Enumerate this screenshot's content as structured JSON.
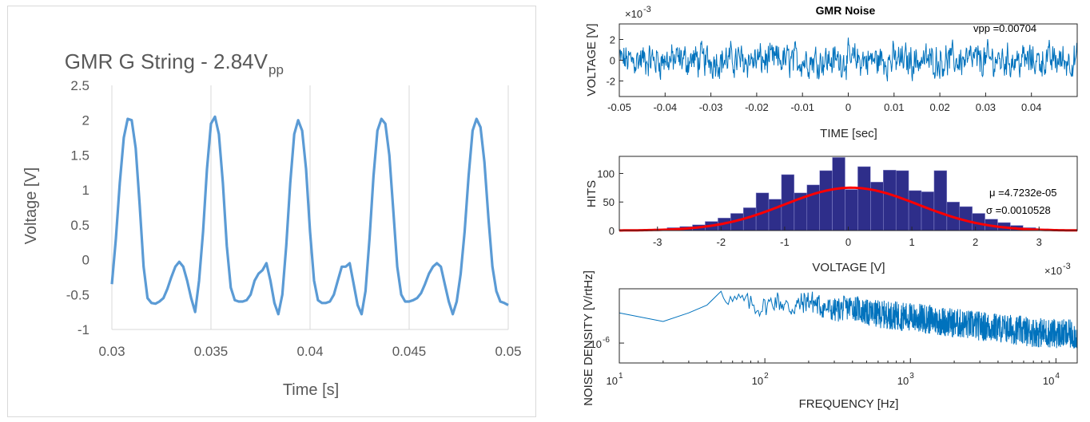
{
  "chart_data": [
    {
      "type": "line",
      "title": "GMR G String - 2.84V",
      "title_subscript": "pp",
      "xlabel": "Time [s]",
      "ylabel": "Voltage [V]",
      "xlim": [
        0.03,
        0.05
      ],
      "ylim": [
        -1,
        2.5
      ],
      "x_ticks": [
        "0.03",
        "0.035",
        "0.04",
        "0.045",
        "0.05"
      ],
      "y_ticks": [
        "2.5",
        "2",
        "1.5",
        "1",
        "0.5",
        "0",
        "-0.5",
        "-1"
      ],
      "grid": "vertical",
      "series_color": "#5b9bd5",
      "series": [
        {
          "x": [
            0.03,
            0.0302,
            0.0304,
            0.0306,
            0.0308,
            0.031,
            0.0312,
            0.0314,
            0.0316,
            0.0318,
            0.032,
            0.0322,
            0.0324,
            0.0326,
            0.0328,
            0.033,
            0.0332,
            0.0334,
            0.0336,
            0.0338,
            0.034,
            0.0342,
            0.0344,
            0.0346,
            0.0348,
            0.035,
            0.0352,
            0.0354,
            0.0356,
            0.0358,
            0.036,
            0.0362,
            0.0364,
            0.0366,
            0.0368,
            0.037,
            0.0372,
            0.0374,
            0.0376,
            0.0378,
            0.038,
            0.0382,
            0.0384,
            0.0386,
            0.0388,
            0.039,
            0.0392,
            0.0394,
            0.0396,
            0.0398,
            0.04,
            0.0402,
            0.0404,
            0.0406,
            0.0408,
            0.041,
            0.0412,
            0.0414,
            0.0416,
            0.0418,
            0.042,
            0.0422,
            0.0424,
            0.0426,
            0.0428,
            0.043,
            0.0432,
            0.0434,
            0.0436,
            0.0438,
            0.044,
            0.0442,
            0.0444,
            0.0446,
            0.0448,
            0.045,
            0.0452,
            0.0454,
            0.0456,
            0.0458,
            0.046,
            0.0462,
            0.0464,
            0.0466,
            0.0468,
            0.047,
            0.0472,
            0.0474,
            0.0476,
            0.0478,
            0.048,
            0.0482,
            0.0484,
            0.0486,
            0.0488,
            0.049,
            0.0492,
            0.0494,
            0.0496,
            0.0498,
            0.05
          ],
          "y": [
            -0.35,
            0.3,
            1.1,
            1.75,
            2.02,
            2.0,
            1.6,
            0.8,
            -0.1,
            -0.55,
            -0.62,
            -0.63,
            -0.6,
            -0.55,
            -0.42,
            -0.25,
            -0.1,
            -0.03,
            -0.1,
            -0.3,
            -0.55,
            -0.75,
            -0.3,
            0.4,
            1.3,
            1.95,
            2.05,
            1.8,
            1.1,
            0.2,
            -0.4,
            -0.58,
            -0.6,
            -0.6,
            -0.58,
            -0.5,
            -0.3,
            -0.2,
            -0.15,
            -0.05,
            -0.3,
            -0.62,
            -0.78,
            -0.5,
            0.2,
            1.1,
            1.8,
            2.0,
            1.85,
            1.3,
            0.4,
            -0.3,
            -0.58,
            -0.62,
            -0.62,
            -0.6,
            -0.5,
            -0.3,
            -0.1,
            -0.1,
            -0.05,
            -0.35,
            -0.65,
            -0.78,
            -0.45,
            0.3,
            1.2,
            1.85,
            2.02,
            1.95,
            1.5,
            0.7,
            -0.1,
            -0.5,
            -0.6,
            -0.6,
            -0.58,
            -0.55,
            -0.48,
            -0.35,
            -0.2,
            -0.1,
            -0.05,
            -0.1,
            -0.35,
            -0.6,
            -0.78,
            -0.6,
            -0.2,
            0.4,
            1.2,
            1.85,
            2.02,
            1.9,
            1.4,
            0.6,
            -0.1,
            -0.45,
            -0.6,
            -0.62,
            -0.65
          ]
        }
      ]
    },
    {
      "type": "line",
      "title": "GMR Noise",
      "xlabel": "TIME [sec]",
      "ylabel": "VOLTAGE [V]",
      "y_exponent": "×10",
      "y_exponent_power": "-3",
      "xlim": [
        -0.05,
        0.05
      ],
      "ylim": [
        -3.5,
        3.5
      ],
      "x_ticks": [
        "-0.05",
        "-0.04",
        "-0.03",
        "-0.02",
        "-0.01",
        "0",
        "0.01",
        "0.02",
        "0.03",
        "0.04"
      ],
      "y_ticks": [
        "2",
        "0",
        "-2"
      ],
      "annotation": "vpp =0.00704",
      "series_color": "#0072bd",
      "noise_amplitude_mV": 3.52
    },
    {
      "type": "bar",
      "xlabel": "VOLTAGE [V]",
      "ylabel": "HITS",
      "x_exponent": "×10",
      "x_exponent_power": "-3",
      "xlim": [
        -3.6,
        3.6
      ],
      "ylim": [
        0,
        130
      ],
      "x_ticks": [
        "-3",
        "-2",
        "-1",
        "0",
        "1",
        "2",
        "3"
      ],
      "y_ticks": [
        "100",
        "50",
        "0"
      ],
      "bar_color": "#2e2e8a",
      "fit_color": "#ff0000",
      "fit": {
        "mu_mV": 0.047,
        "sigma_mV": 1.0528,
        "peak": 75
      },
      "annotation_mu": "μ =4.7232e-05",
      "annotation_sigma": "σ =0.0010528",
      "x": [
        -3.15,
        -2.95,
        -2.75,
        -2.55,
        -2.35,
        -2.15,
        -1.95,
        -1.75,
        -1.55,
        -1.35,
        -1.15,
        -0.95,
        -0.75,
        -0.55,
        -0.35,
        -0.15,
        0.05,
        0.25,
        0.45,
        0.65,
        0.85,
        1.05,
        1.25,
        1.45,
        1.65,
        1.85,
        2.05,
        2.25,
        2.45,
        2.65,
        2.85,
        3.05
      ],
      "values": [
        2,
        3,
        5,
        7,
        10,
        16,
        22,
        30,
        40,
        66,
        55,
        98,
        66,
        80,
        105,
        128,
        72,
        112,
        85,
        106,
        105,
        70,
        68,
        105,
        50,
        42,
        30,
        20,
        14,
        9,
        5,
        3
      ]
    },
    {
      "type": "line",
      "xlabel": "FREQUENCY [Hz]",
      "ylabel": "NOISE DENSITY [V/rtHz]",
      "x_scale": "log",
      "y_scale": "log",
      "x_ticks": [
        {
          "base": "10",
          "power": "1"
        },
        {
          "base": "10",
          "power": "2"
        },
        {
          "base": "10",
          "power": "3"
        },
        {
          "base": "10",
          "power": "4"
        }
      ],
      "y_ticks": [
        {
          "base": "10",
          "power": "-6"
        }
      ],
      "xlim": [
        10,
        14000
      ],
      "series_color": "#0072bd",
      "x": [
        10,
        20,
        30,
        40,
        50,
        60,
        70,
        80,
        90,
        100,
        120,
        150,
        200,
        250,
        300,
        400,
        500,
        700,
        1000,
        1500,
        2000,
        3000,
        5000,
        7000,
        10000,
        14000
      ],
      "y": [
        3.6e-06,
        2.5e-06,
        3.6e-06,
        5e-06,
        9e-06,
        6e-06,
        6.5e-06,
        5.5e-06,
        4.5e-06,
        5e-06,
        6.5e-06,
        4.5e-06,
        6.5e-06,
        4.8e-06,
        4.2e-06,
        5e-06,
        3.8e-06,
        3.5e-06,
        3.2e-06,
        2.8e-06,
        2.5e-06,
        2.2e-06,
        1.9e-06,
        1.7e-06,
        1.6e-06,
        1.5e-06
      ]
    }
  ]
}
